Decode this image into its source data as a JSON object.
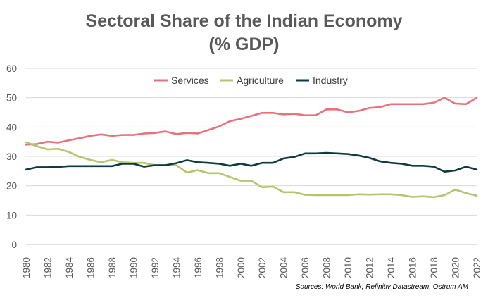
{
  "chart_data": {
    "type": "line",
    "title": "Sectoral Share of the Indian Economy",
    "subtitle": "(% GDP)",
    "source": "Sources: World Bank, Refinitiv Datastream, Ostrum AM",
    "xlabel": "",
    "ylabel": "",
    "ylim": [
      0,
      60
    ],
    "yticks": [
      "0",
      "10",
      "20",
      "30",
      "40",
      "50",
      "60"
    ],
    "xlim": [
      1980,
      2022
    ],
    "xticks": [
      "1980",
      "1982",
      "1984",
      "1986",
      "1988",
      "1990",
      "1992",
      "1994",
      "1996",
      "1998",
      "2000",
      "2002",
      "2004",
      "2006",
      "2008",
      "2010",
      "2012",
      "2014",
      "2016",
      "2018",
      "2020",
      "2022"
    ],
    "grid": true,
    "legend": "top-center",
    "x": [
      1980,
      1981,
      1982,
      1983,
      1984,
      1985,
      1986,
      1987,
      1988,
      1989,
      1990,
      1991,
      1992,
      1993,
      1994,
      1995,
      1996,
      1997,
      1998,
      1999,
      2000,
      2001,
      2002,
      2003,
      2004,
      2005,
      2006,
      2007,
      2008,
      2009,
      2010,
      2011,
      2012,
      2013,
      2014,
      2015,
      2016,
      2017,
      2018,
      2019,
      2020,
      2021,
      2022
    ],
    "series": [
      {
        "name": "Services",
        "color": "#E8727C",
        "values": [
          34.0,
          34.2,
          35.0,
          34.7,
          35.5,
          36.2,
          37.0,
          37.5,
          37.0,
          37.3,
          37.3,
          37.8,
          38.0,
          38.5,
          37.6,
          38.0,
          37.8,
          39.0,
          40.2,
          42.0,
          42.8,
          43.8,
          44.8,
          44.8,
          44.3,
          44.5,
          44.0,
          44.0,
          46.0,
          46.0,
          45.0,
          45.5,
          46.5,
          46.8,
          47.8,
          47.8,
          47.8,
          47.8,
          48.3,
          50.0,
          48.0,
          47.8,
          50.0
        ]
      },
      {
        "name": "Agriculture",
        "color": "#B5C46E",
        "values": [
          34.8,
          33.5,
          32.4,
          32.6,
          31.5,
          29.8,
          28.8,
          28.0,
          28.8,
          28.0,
          27.8,
          27.8,
          27.0,
          27.0,
          27.0,
          24.5,
          25.3,
          24.3,
          24.3,
          23.0,
          21.7,
          21.7,
          19.5,
          19.7,
          17.8,
          17.8,
          16.9,
          16.8,
          16.8,
          16.8,
          16.8,
          17.1,
          17.0,
          17.1,
          17.1,
          16.8,
          16.2,
          16.4,
          16.1,
          16.8,
          18.7,
          17.5,
          16.6
        ]
      },
      {
        "name": "Industry",
        "color": "#0F3A3E",
        "values": [
          25.5,
          26.3,
          26.3,
          26.4,
          26.7,
          26.7,
          26.7,
          26.7,
          26.7,
          27.5,
          27.5,
          26.5,
          27.0,
          27.0,
          27.7,
          28.7,
          28.0,
          27.8,
          27.5,
          26.8,
          27.5,
          26.8,
          27.8,
          27.8,
          29.3,
          29.8,
          31.0,
          31.0,
          31.2,
          31.0,
          30.8,
          30.3,
          29.5,
          28.3,
          27.8,
          27.5,
          26.8,
          26.8,
          26.5,
          24.8,
          25.2,
          26.5,
          25.5
        ]
      }
    ]
  }
}
